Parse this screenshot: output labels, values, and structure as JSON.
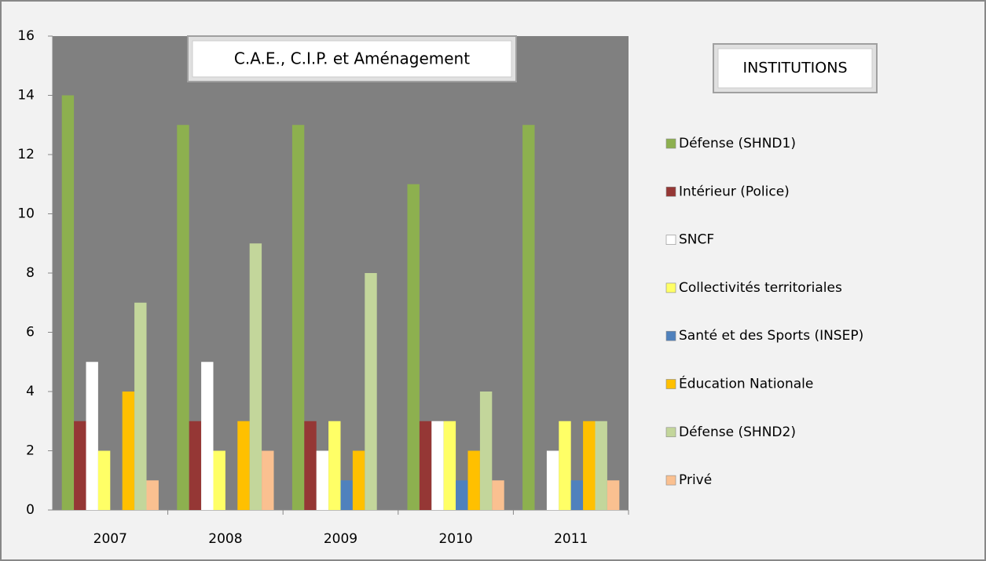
{
  "chart_data": {
    "type": "bar",
    "title": "C.A.E., C.I.P. et Aménagement",
    "legend_title": "INSTITUTIONS",
    "categories": [
      "2007",
      "2008",
      "2009",
      "2010",
      "2011"
    ],
    "series": [
      {
        "name": "Défense (SHND1)",
        "color": "#8db04f",
        "values": [
          14,
          13,
          13,
          11,
          13
        ]
      },
      {
        "name": "Intérieur (Police)",
        "color": "#953735",
        "values": [
          3,
          3,
          3,
          3,
          0
        ]
      },
      {
        "name": "SNCF",
        "color": "#ffffff",
        "values": [
          5,
          5,
          2,
          3,
          2
        ]
      },
      {
        "name": "Collectivités territoriales",
        "color": "#ffff66",
        "values": [
          2,
          2,
          3,
          3,
          3
        ]
      },
      {
        "name": "Santé et des Sports (INSEP)",
        "color": "#4f81bd",
        "values": [
          0,
          0,
          1,
          1,
          1
        ]
      },
      {
        "name": "Éducation Nationale",
        "color": "#ffc000",
        "values": [
          4,
          3,
          2,
          2,
          3
        ]
      },
      {
        "name": "Défense (SHND2)",
        "color": "#c3d69b",
        "values": [
          7,
          9,
          8,
          4,
          3
        ]
      },
      {
        "name": "Privé",
        "color": "#fac090",
        "values": [
          1,
          2,
          0,
          1,
          1
        ]
      }
    ],
    "ylim": [
      0,
      16
    ],
    "yticks": [
      0,
      2,
      4,
      6,
      8,
      10,
      12,
      14,
      16
    ],
    "grid": false,
    "legend": "right",
    "plot_background": "#808080"
  }
}
